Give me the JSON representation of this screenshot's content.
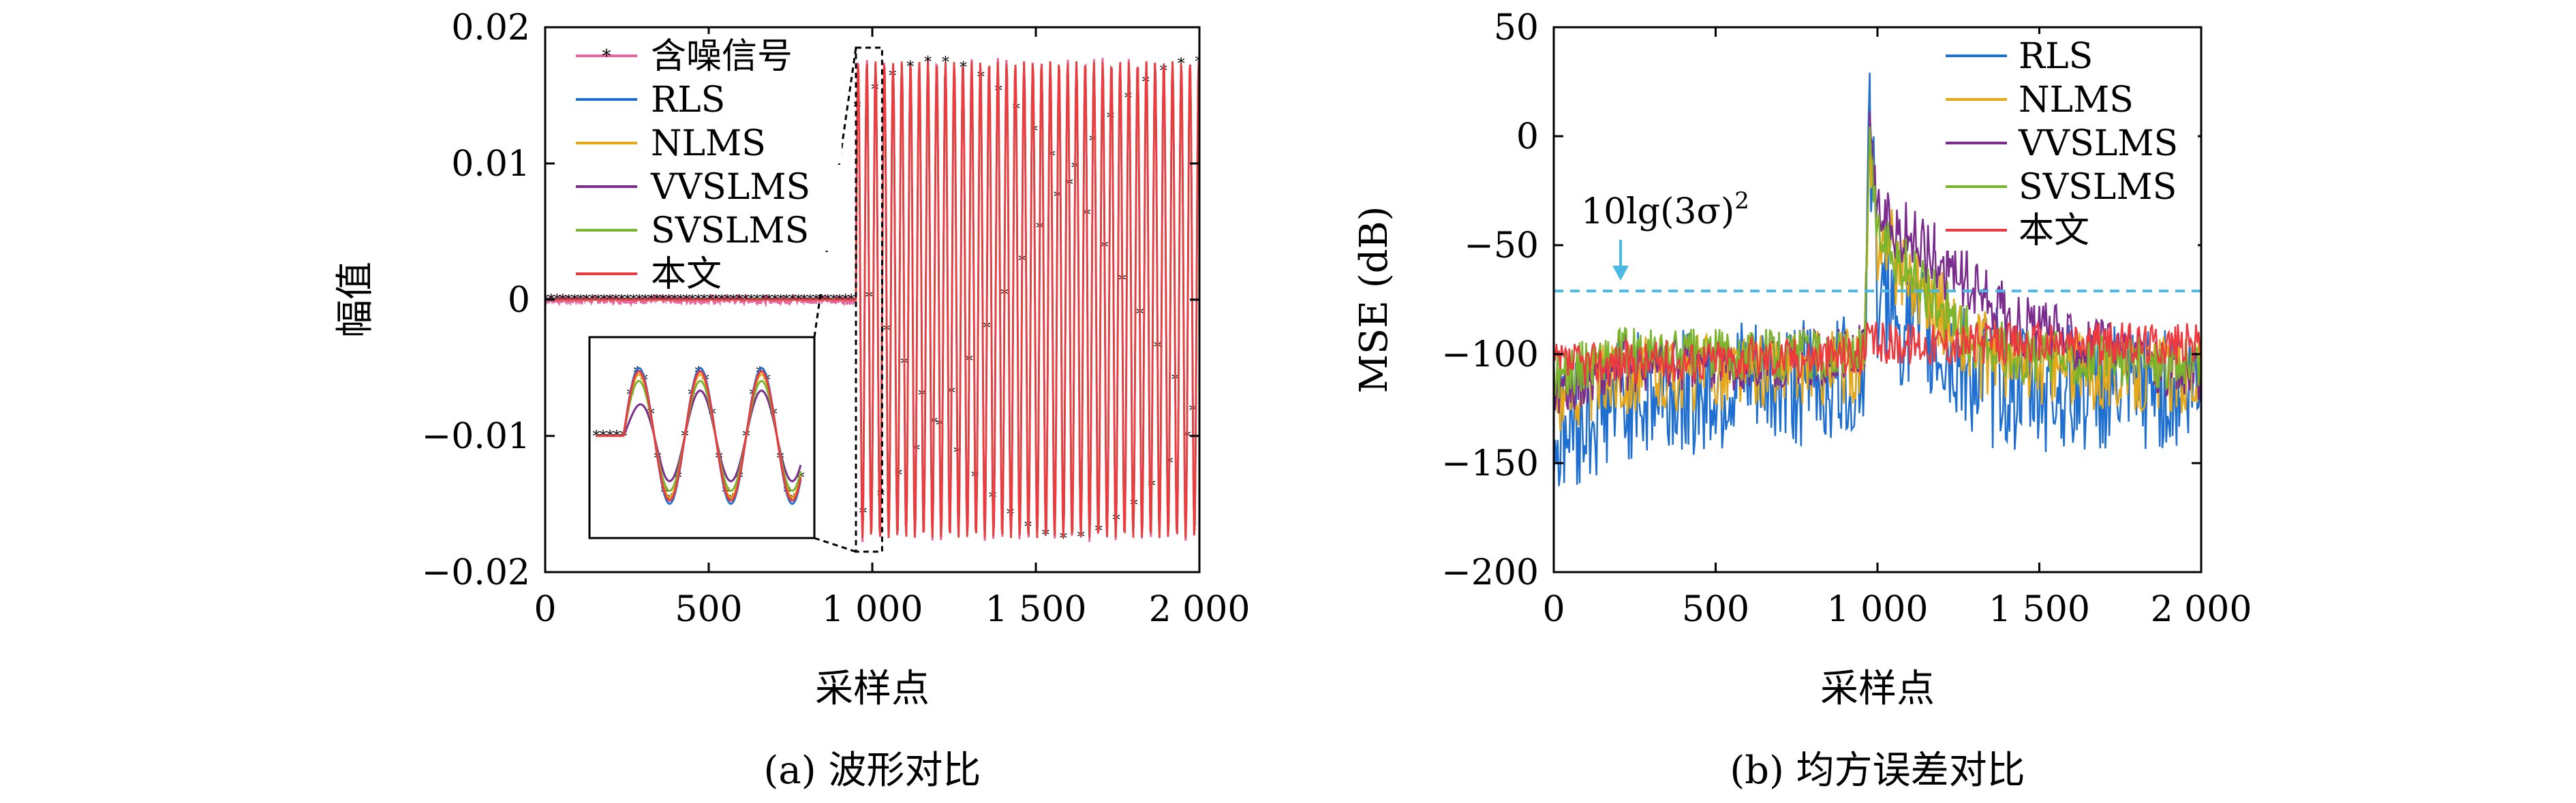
{
  "colors": {
    "noisy": "#e8669e",
    "rls": "#1f6fd0",
    "nlms": "#e5a81a",
    "vvslms": "#7b2d8e",
    "svslms": "#7ab52e",
    "proposed": "#ee3a3f",
    "threshold": "#4cb8e6"
  },
  "chart_data": [
    {
      "type": "line",
      "title": "",
      "caption": "(a) 波形对比",
      "xlabel": "采样点",
      "ylabel": "幅值",
      "xlim": [
        0,
        2000
      ],
      "ylim": [
        -0.02,
        0.02
      ],
      "xticks": [
        0,
        500,
        1000,
        1500,
        2000
      ],
      "xtick_labels": [
        "0",
        "500",
        "1 000",
        "1 500",
        "2 000"
      ],
      "yticks": [
        -0.02,
        -0.01,
        0,
        0.01,
        0.02
      ],
      "ytick_labels": [
        "-0.02",
        "-0.01",
        "0",
        "0.01",
        "0.02"
      ],
      "legend_location": "top-left",
      "series": [
        {
          "name": "含噪信号",
          "x": [
            0,
            950,
            950,
            2000
          ],
          "y": [
            0.0,
            0.0,
            0.0175,
            0.0175
          ],
          "note_shape": "sinusoid amplitude 0.0175 after sample 950"
        },
        {
          "name": "RLS",
          "x": [
            0,
            950,
            950,
            2000
          ],
          "y": [
            0.0,
            0.0,
            0.0175,
            0.0175
          ]
        },
        {
          "name": "NLMS",
          "x": [
            0,
            950,
            950,
            2000
          ],
          "y": [
            0.0,
            0.0,
            0.0175,
            0.0175
          ]
        },
        {
          "name": "VVSLMS",
          "x": [
            0,
            950,
            950,
            2000
          ],
          "y": [
            0.0,
            0.0,
            0.0175,
            0.0175
          ]
        },
        {
          "name": "SVSLMS",
          "x": [
            0,
            950,
            950,
            2000
          ],
          "y": [
            0.0,
            0.0,
            0.0175,
            0.0175
          ]
        },
        {
          "name": "本文",
          "x": [
            0,
            950,
            950,
            2000
          ],
          "y": [
            0.0,
            0.0,
            0.0175,
            0.0175
          ]
        }
      ],
      "zoom_region": {
        "x": [
          950,
          1030
        ],
        "y": [
          -0.0185,
          0.0185
        ]
      }
    },
    {
      "type": "line",
      "title": "",
      "caption": "(b) 均方误差对比",
      "xlabel": "采样点",
      "ylabel": "MSE (dB)",
      "xlim": [
        0,
        2000
      ],
      "ylim": [
        -200,
        50
      ],
      "xticks": [
        0,
        500,
        1000,
        1500,
        2000
      ],
      "xtick_labels": [
        "0",
        "500",
        "1 000",
        "1 500",
        "2 000"
      ],
      "yticks": [
        -200,
        -150,
        -100,
        -50,
        0,
        50
      ],
      "ytick_labels": [
        "-200",
        "-150",
        "-100",
        "-50",
        "0",
        "50"
      ],
      "legend_location": "top-right",
      "threshold": {
        "label": "10lg(3σ)",
        "superscript": "2",
        "y": -71
      },
      "series": [
        {
          "name": "RLS",
          "x": [
            0,
            200,
            960,
            975,
            1000,
            1300,
            2000
          ],
          "y": [
            -140,
            -120,
            -110,
            10,
            -80,
            -115,
            -115
          ]
        },
        {
          "name": "NLMS",
          "x": [
            0,
            200,
            960,
            975,
            1000,
            1300,
            2000
          ],
          "y": [
            -120,
            -110,
            -105,
            -10,
            -50,
            -105,
            -110
          ]
        },
        {
          "name": "VVSLMS",
          "x": [
            0,
            200,
            960,
            975,
            1000,
            1400,
            2000
          ],
          "y": [
            -115,
            -105,
            -100,
            -5,
            -40,
            -85,
            -110
          ]
        },
        {
          "name": "SVSLMS",
          "x": [
            0,
            200,
            960,
            975,
            1000,
            1300,
            2000
          ],
          "y": [
            -110,
            -100,
            -100,
            -10,
            -50,
            -100,
            -105
          ]
        },
        {
          "name": "本文",
          "x": [
            0,
            960,
            965,
            2000
          ],
          "y": [
            -105,
            -100,
            -95,
            -95
          ]
        }
      ]
    }
  ]
}
